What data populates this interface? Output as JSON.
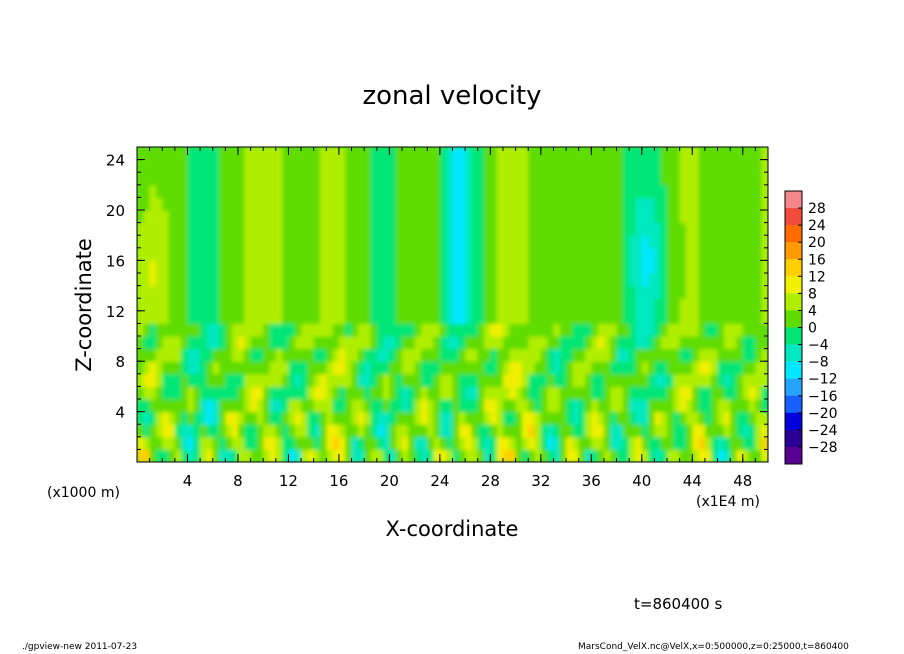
{
  "chart_data": {
    "type": "heatmap",
    "title": "zonal velocity",
    "xlabel": "X-coordinate",
    "ylabel": "Z-coordinate",
    "x_unit": "(x1E4 m)",
    "y_unit": "(x1000 m)",
    "xlim": [
      0,
      50
    ],
    "ylim": [
      0,
      25
    ],
    "x_ticks": [
      "4",
      "8",
      "12",
      "16",
      "20",
      "24",
      "28",
      "32",
      "36",
      "40",
      "44",
      "48"
    ],
    "y_ticks": [
      "4",
      "8",
      "12",
      "16",
      "20",
      "24"
    ],
    "colorbar": {
      "levels": [
        "28",
        "24",
        "20",
        "16",
        "12",
        "8",
        "4",
        "0",
        "−4",
        "−8",
        "−12",
        "−16",
        "−20",
        "−24",
        "−28"
      ],
      "colors": [
        "#f5878a",
        "#f24a3c",
        "#ff6b00",
        "#ff9b00",
        "#ffcf00",
        "#f0f000",
        "#b0ee00",
        "#5fdc00",
        "#00e676",
        "#00e8c0",
        "#00e8ff",
        "#24a4ff",
        "#1660ff",
        "#0000dd",
        "#2a0094",
        "#580090"
      ]
    },
    "colors": {
      "negative": "#1a66ff",
      "neutral": "#2ee05a",
      "positive": "#ffe000"
    },
    "time_label": "t=860400 s"
  },
  "footer": {
    "left": "./gpview-new   2011-07-23",
    "right": "MarsCond_VelX.nc@VelX,x=0:500000,z=0:25000,t=860400"
  }
}
